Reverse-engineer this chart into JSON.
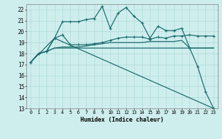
{
  "xlabel": "Humidex (Indice chaleur)",
  "bg_color": "#ceeeed",
  "line_color": "#1a6b6b",
  "grid_color": "#aed8d8",
  "xlim": [
    -0.5,
    23.5
  ],
  "ylim": [
    13,
    22.5
  ],
  "yticks": [
    13,
    14,
    15,
    16,
    17,
    18,
    19,
    20,
    21,
    22
  ],
  "xticks": [
    0,
    1,
    2,
    3,
    4,
    5,
    6,
    7,
    8,
    9,
    10,
    11,
    12,
    13,
    14,
    15,
    16,
    17,
    18,
    19,
    20,
    21,
    22,
    23
  ],
  "line1_x": [
    0,
    1,
    2,
    3,
    4,
    5,
    6,
    7,
    8,
    9,
    10,
    11,
    12,
    13,
    14,
    15,
    16,
    17,
    18,
    19,
    20,
    21,
    22,
    23
  ],
  "line1_y": [
    17.2,
    18.0,
    18.2,
    19.4,
    20.9,
    20.9,
    20.9,
    21.1,
    21.2,
    22.3,
    20.3,
    21.7,
    22.2,
    21.4,
    20.8,
    19.4,
    20.5,
    20.1,
    20.1,
    20.3,
    18.5,
    16.8,
    14.5,
    13.0
  ],
  "line2_x": [
    0,
    1,
    2,
    3,
    4,
    5,
    6,
    7,
    8,
    9,
    10,
    11,
    12,
    13,
    14,
    15,
    16,
    17,
    18,
    19,
    20,
    21,
    22,
    23
  ],
  "line2_y": [
    17.2,
    18.0,
    18.2,
    19.4,
    19.7,
    18.8,
    18.8,
    18.8,
    18.9,
    19.0,
    19.2,
    19.4,
    19.5,
    19.5,
    19.5,
    19.3,
    19.5,
    19.4,
    19.6,
    19.6,
    19.7,
    19.6,
    19.6,
    19.6
  ],
  "line3_x": [
    0,
    1,
    2,
    3,
    4,
    5,
    6,
    7,
    8,
    9,
    10,
    11,
    12,
    13,
    14,
    15,
    16,
    17,
    18,
    19,
    20,
    21,
    22,
    23
  ],
  "line3_y": [
    17.2,
    18.0,
    18.2,
    18.5,
    18.5,
    18.5,
    18.5,
    18.5,
    18.5,
    18.5,
    18.5,
    18.5,
    18.5,
    18.5,
    18.5,
    18.5,
    18.5,
    18.5,
    18.5,
    18.5,
    18.5,
    18.5,
    18.5,
    18.5
  ],
  "line4_x": [
    0,
    1,
    2,
    3,
    4,
    5,
    6,
    7,
    8,
    9,
    10,
    11,
    12,
    13,
    14,
    15,
    16,
    17,
    18,
    19,
    20,
    21,
    22,
    23
  ],
  "line4_y": [
    17.2,
    18.0,
    18.2,
    18.5,
    18.6,
    18.6,
    18.6,
    18.7,
    18.8,
    18.9,
    19.0,
    19.0,
    19.0,
    19.0,
    19.0,
    19.1,
    19.1,
    19.1,
    19.1,
    19.2,
    18.5,
    18.5,
    18.5,
    18.5
  ],
  "line5_x": [
    0,
    3,
    23
  ],
  "line5_y": [
    17.2,
    19.4,
    13.0
  ]
}
